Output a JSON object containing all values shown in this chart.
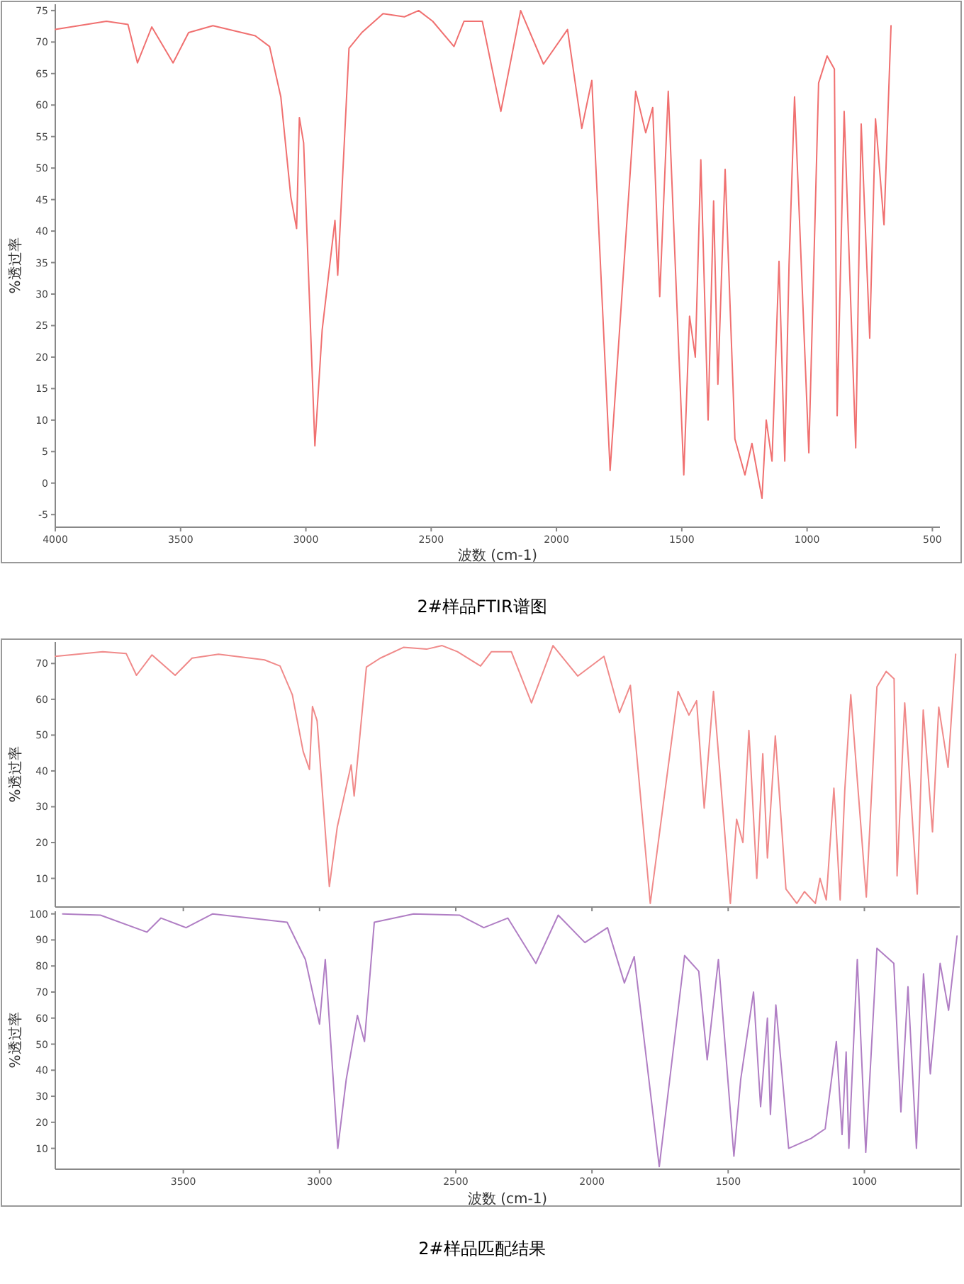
{
  "chart_data": [
    {
      "type": "line",
      "ylabel": "%透过率",
      "xlabel": "波数 (cm-1)",
      "color": "#f07070",
      "xlim": [
        4000,
        470
      ],
      "ylim": [
        -7,
        76
      ],
      "xticks": [
        4000,
        3500,
        3000,
        2500,
        2000,
        1500,
        1000,
        500
      ],
      "yticks": [
        -5,
        0,
        5,
        10,
        15,
        20,
        25,
        30,
        35,
        40,
        45,
        50,
        55,
        60,
        65,
        70,
        75
      ],
      "annotations": [
        "2#样品FTIR谱图"
      ],
      "x": [
        4000,
        3796,
        3710,
        3672,
        3615,
        3530,
        3468,
        3371,
        3202,
        3145,
        3100,
        3060,
        3037,
        3026,
        3009,
        2964,
        2935,
        2884,
        2873,
        2828,
        2777,
        2692,
        2607,
        2550,
        2494,
        2409,
        2369,
        2296,
        2222,
        2143,
        2052,
        1956,
        1899,
        1859,
        1786,
        1684,
        1644,
        1616,
        1588,
        1554,
        1492,
        1469,
        1446,
        1424,
        1395,
        1373,
        1356,
        1327,
        1288,
        1248,
        1220,
        1180,
        1163,
        1140,
        1112,
        1089,
        1072,
        1050,
        993,
        954,
        920,
        891,
        880,
        852,
        806,
        784,
        750,
        727,
        693,
        665
      ],
      "values": [
        72,
        73.3,
        72.8,
        66.7,
        72.4,
        66.7,
        71.5,
        72.6,
        71,
        69.3,
        61.3,
        45.4,
        40.4,
        58,
        54,
        5.9,
        24.3,
        41.7,
        33,
        69,
        71.5,
        74.5,
        74,
        75,
        73.3,
        69.3,
        73.3,
        73.3,
        59,
        75,
        66.5,
        72,
        56.3,
        63.9,
        2,
        62.2,
        55.6,
        59.6,
        29.6,
        62.2,
        1.3,
        26.5,
        20,
        51.3,
        10,
        44.8,
        15.7,
        49.8,
        7,
        1.3,
        6.3,
        -2.4,
        10,
        3.5,
        35.2,
        3.5,
        34.6,
        61.3,
        4.8,
        63.5,
        67.8,
        65.7,
        10.7,
        59,
        5.6,
        57,
        23,
        57.8,
        41,
        72.6
      ]
    },
    {
      "type": "line",
      "ylabel": "%透过率",
      "color": "#f08a8a",
      "xlim": [
        3970,
        650
      ],
      "ylim": [
        2,
        76
      ],
      "xticks": [
        3500,
        3000,
        2500,
        2000,
        1500,
        1000
      ],
      "yticks": [
        10,
        20,
        30,
        40,
        50,
        60,
        70
      ],
      "tick_labels": "y",
      "x": [
        3970,
        3796,
        3710,
        3672,
        3615,
        3530,
        3468,
        3371,
        3202,
        3145,
        3100,
        3060,
        3037,
        3026,
        3009,
        2964,
        2935,
        2884,
        2873,
        2828,
        2777,
        2692,
        2607,
        2550,
        2494,
        2409,
        2369,
        2296,
        2222,
        2143,
        2052,
        1956,
        1899,
        1859,
        1786,
        1684,
        1644,
        1616,
        1588,
        1554,
        1492,
        1469,
        1446,
        1424,
        1395,
        1373,
        1356,
        1327,
        1288,
        1248,
        1220,
        1180,
        1163,
        1140,
        1112,
        1089,
        1072,
        1050,
        993,
        954,
        920,
        891,
        880,
        852,
        806,
        784,
        750,
        727,
        693,
        665
      ],
      "values": [
        72,
        73.3,
        72.8,
        66.7,
        72.4,
        66.7,
        71.5,
        72.6,
        71,
        69.3,
        61.3,
        45.4,
        40.4,
        58,
        54,
        7.7,
        24.3,
        41.7,
        33,
        69,
        71.5,
        74.5,
        74,
        75,
        73.3,
        69.3,
        73.3,
        73.3,
        59,
        75,
        66.5,
        72,
        56.3,
        63.9,
        3,
        62.2,
        55.6,
        59.6,
        29.6,
        62.2,
        3,
        26.5,
        20,
        51.3,
        10,
        44.8,
        15.7,
        49.8,
        7,
        3,
        6.3,
        3,
        10,
        4,
        35.2,
        4,
        34.6,
        61.3,
        4.8,
        63.5,
        67.8,
        65.7,
        10.7,
        59,
        5.6,
        57,
        23,
        57.8,
        41,
        72.6
      ]
    },
    {
      "type": "line",
      "ylabel": "%透过率",
      "xlabel": "波数 (cm-1)",
      "color": "#b07ec4",
      "xlim": [
        3970,
        650
      ],
      "ylim": [
        2,
        101
      ],
      "xticks": [
        3500,
        3000,
        2500,
        2000,
        1500,
        1000
      ],
      "yticks": [
        10,
        20,
        30,
        40,
        50,
        60,
        70,
        80,
        90,
        100
      ],
      "annotations": [
        "2#样品匹配结果"
      ],
      "x": [
        3943,
        3804,
        3634,
        3582,
        3490,
        3392,
        3119,
        3052,
        3000,
        2979,
        2933,
        2902,
        2861,
        2835,
        2799,
        2655,
        2485,
        2397,
        2309,
        2206,
        2124,
        2026,
        1943,
        1881,
        1845,
        1753,
        1660,
        1608,
        1577,
        1536,
        1479,
        1454,
        1407,
        1381,
        1356,
        1345,
        1325,
        1278,
        1196,
        1144,
        1103,
        1082,
        1067,
        1057,
        1026,
        995,
        954,
        892,
        866,
        840,
        809,
        783,
        758,
        722,
        691,
        660
      ],
      "values": [
        100,
        99.5,
        93,
        98.4,
        94.7,
        100,
        96.8,
        82.5,
        57.7,
        82.5,
        10,
        36.5,
        61,
        51,
        96.8,
        100,
        99.5,
        94.7,
        98.4,
        81,
        99.5,
        89,
        94.7,
        73.5,
        83.6,
        3,
        84,
        78,
        44,
        82.5,
        7,
        36.5,
        70,
        26,
        60,
        23,
        65,
        10,
        13.8,
        17.5,
        51,
        15.3,
        47,
        10,
        82.5,
        8.5,
        86.8,
        81,
        24,
        72,
        10,
        77,
        38.6,
        81,
        63,
        91.5
      ]
    }
  ]
}
